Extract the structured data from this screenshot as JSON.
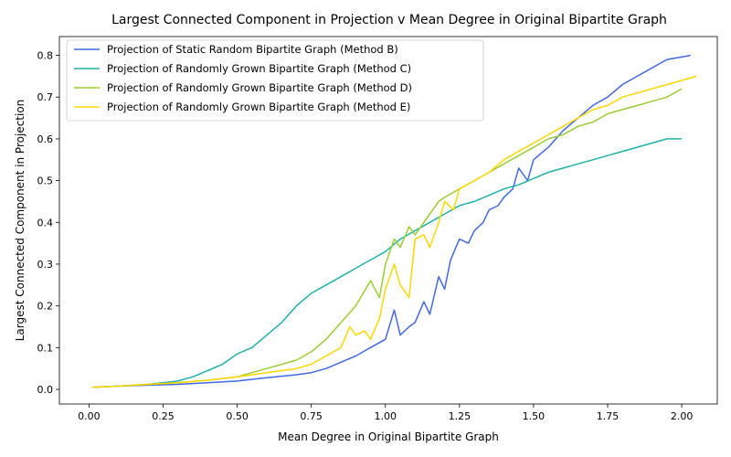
{
  "chart_data": {
    "type": "line",
    "title": "Largest Connected Component in Projection v Mean Degree in Original Bipartite Graph",
    "xlabel": "Mean Degree in Original Bipartite Graph",
    "ylabel": "Largest Connected Component in Projection",
    "xlim": [
      -0.1,
      2.12
    ],
    "ylim": [
      -0.035,
      0.845
    ],
    "xticks": [
      0.0,
      0.25,
      0.5,
      0.75,
      1.0,
      1.25,
      1.5,
      1.75,
      2.0
    ],
    "xtick_labels": [
      "0.00",
      "0.25",
      "0.50",
      "0.75",
      "1.00",
      "1.25",
      "1.50",
      "1.75",
      "2.00"
    ],
    "yticks": [
      0.0,
      0.1,
      0.2,
      0.3,
      0.4,
      0.5,
      0.6,
      0.7,
      0.8
    ],
    "ytick_labels": [
      "0.0",
      "0.1",
      "0.2",
      "0.3",
      "0.4",
      "0.5",
      "0.6",
      "0.7",
      "0.8"
    ],
    "grid": false,
    "legend_position": "upper-left",
    "series": [
      {
        "name": "Projection of Static Random Bipartite Graph (Method B)",
        "color": "#4169e1",
        "x": [
          0.01,
          0.1,
          0.2,
          0.3,
          0.4,
          0.5,
          0.6,
          0.7,
          0.75,
          0.8,
          0.85,
          0.9,
          0.95,
          1.0,
          1.03,
          1.05,
          1.08,
          1.1,
          1.13,
          1.15,
          1.18,
          1.2,
          1.22,
          1.25,
          1.28,
          1.3,
          1.33,
          1.35,
          1.38,
          1.4,
          1.43,
          1.45,
          1.48,
          1.5,
          1.55,
          1.6,
          1.65,
          1.7,
          1.75,
          1.8,
          1.85,
          1.9,
          1.95,
          2.03
        ],
        "y": [
          0.005,
          0.008,
          0.01,
          0.012,
          0.016,
          0.02,
          0.028,
          0.035,
          0.04,
          0.05,
          0.065,
          0.08,
          0.1,
          0.12,
          0.19,
          0.13,
          0.15,
          0.16,
          0.21,
          0.18,
          0.27,
          0.24,
          0.31,
          0.36,
          0.35,
          0.38,
          0.4,
          0.43,
          0.44,
          0.46,
          0.48,
          0.53,
          0.5,
          0.55,
          0.58,
          0.62,
          0.65,
          0.68,
          0.7,
          0.73,
          0.75,
          0.77,
          0.79,
          0.8
        ]
      },
      {
        "name": "Projection of Randomly Grown Bipartite Graph (Method C)",
        "color": "#20b2aa",
        "x": [
          0.01,
          0.1,
          0.2,
          0.3,
          0.35,
          0.4,
          0.45,
          0.5,
          0.55,
          0.6,
          0.65,
          0.7,
          0.75,
          0.8,
          0.85,
          0.9,
          0.95,
          1.0,
          1.05,
          1.1,
          1.15,
          1.2,
          1.25,
          1.3,
          1.35,
          1.4,
          1.45,
          1.5,
          1.55,
          1.6,
          1.65,
          1.7,
          1.75,
          1.8,
          1.85,
          1.9,
          1.95,
          2.0
        ],
        "y": [
          0.005,
          0.008,
          0.012,
          0.02,
          0.03,
          0.045,
          0.06,
          0.085,
          0.1,
          0.13,
          0.16,
          0.2,
          0.23,
          0.25,
          0.27,
          0.29,
          0.31,
          0.33,
          0.36,
          0.38,
          0.4,
          0.42,
          0.44,
          0.45,
          0.465,
          0.48,
          0.49,
          0.505,
          0.52,
          0.53,
          0.54,
          0.55,
          0.56,
          0.57,
          0.58,
          0.59,
          0.6,
          0.6
        ]
      },
      {
        "name": "Projection of Randomly Grown Bipartite Graph (Method D)",
        "color": "#9acd32",
        "x": [
          0.01,
          0.1,
          0.2,
          0.3,
          0.4,
          0.5,
          0.55,
          0.6,
          0.65,
          0.7,
          0.75,
          0.8,
          0.85,
          0.9,
          0.95,
          0.98,
          1.0,
          1.03,
          1.05,
          1.08,
          1.1,
          1.13,
          1.15,
          1.18,
          1.2,
          1.25,
          1.3,
          1.35,
          1.4,
          1.45,
          1.5,
          1.55,
          1.6,
          1.65,
          1.7,
          1.75,
          1.8,
          1.85,
          1.9,
          1.95,
          2.0
        ],
        "y": [
          0.005,
          0.008,
          0.012,
          0.016,
          0.022,
          0.03,
          0.04,
          0.05,
          0.06,
          0.07,
          0.09,
          0.12,
          0.16,
          0.2,
          0.26,
          0.22,
          0.3,
          0.36,
          0.34,
          0.39,
          0.37,
          0.4,
          0.42,
          0.45,
          0.46,
          0.48,
          0.5,
          0.52,
          0.54,
          0.56,
          0.58,
          0.6,
          0.61,
          0.63,
          0.64,
          0.66,
          0.67,
          0.68,
          0.69,
          0.7,
          0.72
        ]
      },
      {
        "name": "Projection of Randomly Grown Bipartite Graph (Method E)",
        "color": "#ffd700",
        "x": [
          0.01,
          0.1,
          0.2,
          0.3,
          0.4,
          0.5,
          0.6,
          0.7,
          0.75,
          0.8,
          0.85,
          0.88,
          0.9,
          0.93,
          0.95,
          0.98,
          1.0,
          1.03,
          1.05,
          1.08,
          1.1,
          1.13,
          1.15,
          1.18,
          1.2,
          1.23,
          1.25,
          1.3,
          1.35,
          1.4,
          1.45,
          1.5,
          1.55,
          1.6,
          1.65,
          1.7,
          1.75,
          1.8,
          1.85,
          1.9,
          1.95,
          2.0,
          2.05
        ],
        "y": [
          0.005,
          0.008,
          0.012,
          0.016,
          0.022,
          0.03,
          0.04,
          0.05,
          0.06,
          0.08,
          0.1,
          0.15,
          0.13,
          0.14,
          0.12,
          0.17,
          0.24,
          0.3,
          0.25,
          0.22,
          0.36,
          0.37,
          0.34,
          0.4,
          0.45,
          0.43,
          0.48,
          0.5,
          0.52,
          0.55,
          0.57,
          0.59,
          0.61,
          0.63,
          0.65,
          0.67,
          0.68,
          0.7,
          0.71,
          0.72,
          0.73,
          0.74,
          0.75
        ]
      }
    ]
  }
}
